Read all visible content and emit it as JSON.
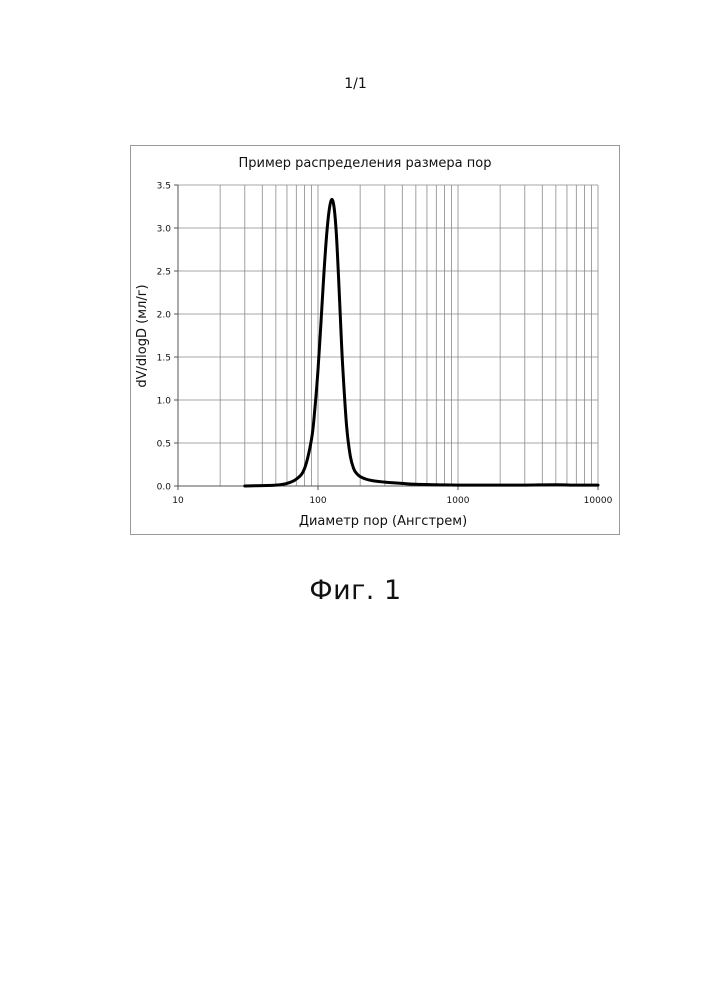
{
  "page": {
    "page_number": "1/1",
    "figure_caption": "Фиг. 1"
  },
  "chart_data": {
    "type": "line",
    "title": "Пример распределения размера пор",
    "xlabel": "Диаметр пор (Ангстрем)",
    "ylabel": "dV/dlogD (мл/г)",
    "x_scale": "log",
    "xlim": [
      10,
      10000
    ],
    "ylim": [
      0,
      3.5
    ],
    "x_ticks": [
      "10",
      "100",
      "1000",
      "10000"
    ],
    "y_ticks": [
      "0.0",
      "0.5",
      "1.0",
      "1.5",
      "2.0",
      "2.5",
      "3.0",
      "3.5"
    ],
    "grid": true,
    "legend": "none",
    "series": [
      {
        "color": "#000000",
        "x": [
          30,
          40,
          50,
          60,
          70,
          80,
          90,
          95,
          100,
          105,
          110,
          115,
          120,
          125,
          130,
          135,
          140,
          145,
          150,
          160,
          170,
          180,
          190,
          200,
          220,
          250,
          300,
          400,
          500,
          700,
          1000,
          2000,
          3000,
          5000,
          7000,
          10000
        ],
        "y": [
          0.0,
          0.005,
          0.01,
          0.03,
          0.08,
          0.2,
          0.55,
          0.9,
          1.35,
          1.9,
          2.45,
          2.9,
          3.2,
          3.33,
          3.25,
          2.95,
          2.45,
          1.9,
          1.4,
          0.7,
          0.35,
          0.2,
          0.14,
          0.11,
          0.08,
          0.06,
          0.045,
          0.03,
          0.02,
          0.015,
          0.01,
          0.01,
          0.01,
          0.015,
          0.01,
          0.01
        ]
      }
    ]
  }
}
